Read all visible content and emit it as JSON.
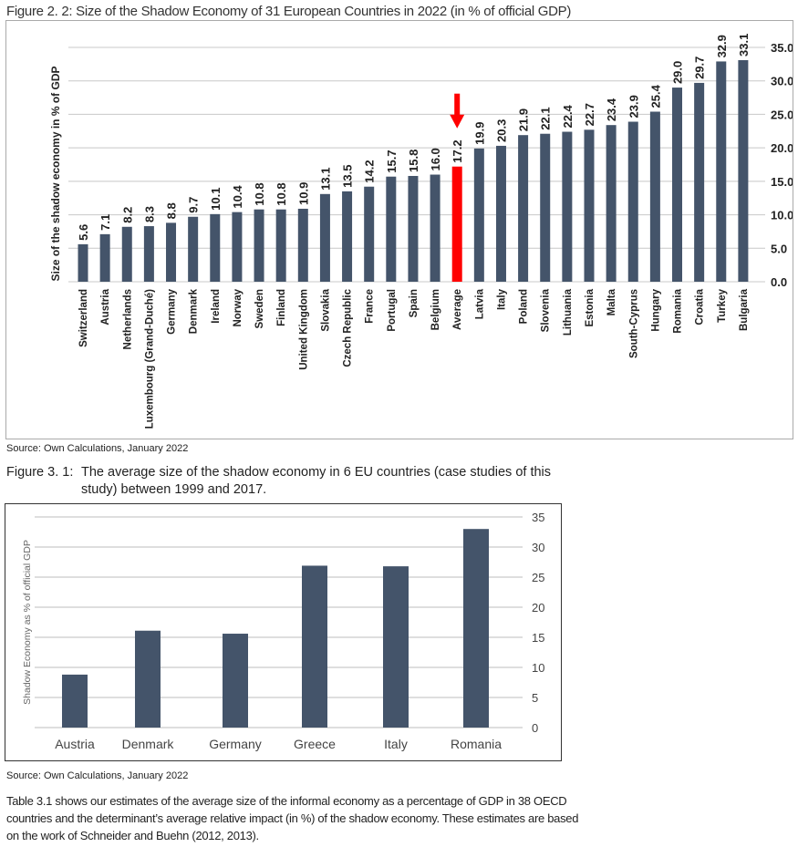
{
  "figure1": {
    "title": "Figure 2. 2: Size of the Shadow Economy of 31 European Countries in 2022 (in % of official GDP)",
    "source": "Source: Own Calculations, January 2022"
  },
  "figure2": {
    "title_number": "Figure 3. 1:",
    "title_line1": "The average size of the shadow economy in 6 EU countries (case studies of this",
    "title_line2": "study) between 1999 and 2017.",
    "source": "Source: Own Calculations, January 2022"
  },
  "paragraph": "Table 3.1 shows our estimates of the average size of the informal economy as a percentage of GDP in 38 OECD countries and the determinant’s average relative impact (in %) of the shadow economy. These estimates are based on the work of Schneider and Buehn (2012, 2013).",
  "chart_data": [
    {
      "type": "bar",
      "title": "Size of the Shadow Economy of 31 European Countries in 2022 (in % of official GDP)",
      "ylabel": "Size of the shadow economy in % of GDP",
      "xlabel": "",
      "ylim": [
        0,
        35
      ],
      "yticks": [
        "0.0",
        "5.0",
        "10.0",
        "15.0",
        "20.0",
        "25.0",
        "30.0",
        "35.0"
      ],
      "categories": [
        "Switzerland",
        "Austria",
        "Netherlands",
        "Luxembourg (Grand-Duché)",
        "Germany",
        "Denmark",
        "Ireland",
        "Norway",
        "Sweden",
        "Finland",
        "United Kingdom",
        "Slovakia",
        "Czech Republic",
        "France",
        "Portugal",
        "Spain",
        "Belgium",
        "Average",
        "Latvia",
        "Italy",
        "Poland",
        "Slovenia",
        "Lithuania",
        "Estonia",
        "Malta",
        "South-Cyprus",
        "Hungary",
        "Romania",
        "Croatia",
        "Turkey",
        "Bulgaria"
      ],
      "values": [
        5.6,
        7.1,
        8.2,
        8.3,
        8.8,
        9.7,
        10.1,
        10.4,
        10.8,
        10.8,
        10.9,
        13.1,
        13.5,
        14.2,
        15.7,
        15.8,
        16.0,
        17.2,
        19.9,
        20.3,
        21.9,
        22.1,
        22.4,
        22.7,
        23.4,
        23.9,
        25.4,
        29.0,
        29.7,
        32.9,
        33.1
      ],
      "labels": [
        "5.6",
        "7.1",
        "8.2",
        "8.3",
        "8.8",
        "9.7",
        "10.1",
        "10.4",
        "10.8",
        "10.8",
        "10.9",
        "13.1",
        "13.5",
        "14.2",
        "15.7",
        "15.8",
        "16.0",
        "17.2",
        "19.9",
        "20.3",
        "21.9",
        "22.1",
        "22.4",
        "22.7",
        "23.4",
        "23.9",
        "25.4",
        "29.0",
        "29.7",
        "32.9",
        "33.1"
      ],
      "highlight": "Average",
      "bar_color": "#44546a",
      "highlight_color": "#ff0000",
      "grid": true,
      "axis_side": "right"
    },
    {
      "type": "bar",
      "title": "The average size of the shadow economy in 6 EU countries between 1999 and 2017",
      "ylabel": "Shadow Economy as % of official GDP",
      "xlabel": "",
      "ylim": [
        0,
        35
      ],
      "yticks": [
        "0",
        "5",
        "10",
        "15",
        "20",
        "25",
        "30",
        "35"
      ],
      "categories": [
        "Austria",
        "Denmark",
        "Germany",
        "Greece",
        "Italy",
        "Romania"
      ],
      "values": [
        8.8,
        16.1,
        15.6,
        26.9,
        26.8,
        33.0
      ],
      "bar_color": "#44546a",
      "grid": true,
      "axis_side": "right"
    }
  ]
}
